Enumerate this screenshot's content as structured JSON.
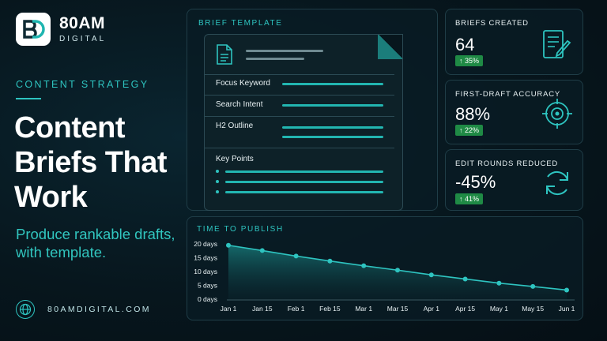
{
  "brand": {
    "name": "80AM",
    "sub": "DIGITAL",
    "website": "80AMDIGITAL.COM",
    "accent": "#2ec4c0"
  },
  "hero": {
    "kicker": "CONTENT STRATEGY",
    "headline": "Content Briefs That Work",
    "subline": "Produce rankable drafts, with template."
  },
  "brief_template": {
    "title": "BRIEF TEMPLATE",
    "fields": [
      "Focus Keyword",
      "Search Intent",
      "H2 Outline",
      "Key Points"
    ]
  },
  "stats": [
    {
      "title": "BRIEFS CREATED",
      "value": "64",
      "change": "↑ 35%",
      "icon": "document-edit-icon"
    },
    {
      "title": "FIRST-DRAFT ACCURACY",
      "value": "88%",
      "change": "↑ 22%",
      "icon": "target-icon"
    },
    {
      "title": "EDIT ROUNDS REDUCED",
      "value": "-45%",
      "change": "↑ 41%",
      "icon": "refresh-icon"
    }
  ],
  "chart_data": {
    "type": "area",
    "title": "TIME TO PUBLISH",
    "categories": [
      "Jan 1",
      "Jan 15",
      "Feb 1",
      "Feb 15",
      "Mar 1",
      "Mar 15",
      "Apr 1",
      "Apr 15",
      "May 1",
      "May 15",
      "Jun 1"
    ],
    "series": [
      {
        "values": [
          19.5,
          17.6,
          15.6,
          13.8,
          12.1,
          10.5,
          8.8,
          7.3,
          5.8,
          4.6,
          3.3
        ]
      }
    ],
    "y_ticks": [
      "0 days",
      "5 days",
      "10 days",
      "15 days",
      "20 days"
    ],
    "ylim": [
      0,
      20
    ],
    "grid": false,
    "color": "#2ec4c0"
  }
}
